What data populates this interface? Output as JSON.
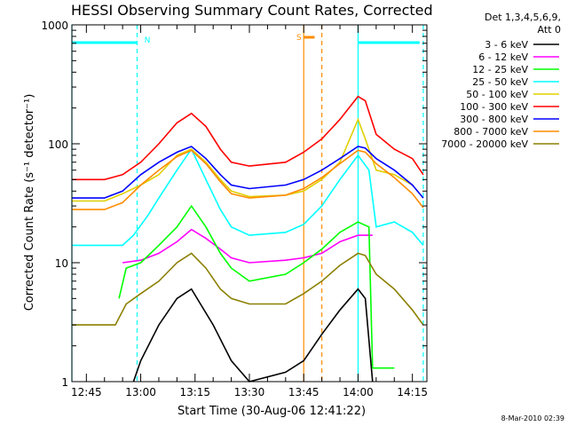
{
  "chart_data": {
    "type": "line",
    "title": "HESSI Observing Summary Count Rates, Corrected",
    "xlabel": "Start Time (30-Aug-06 12:41:22)",
    "ylabel": "Corrected Count Rate (s⁻¹ detector⁻¹)",
    "yscale": "log",
    "ylim": [
      1,
      1000
    ],
    "xlim": [
      "12:41",
      "14:19"
    ],
    "x_ticks": [
      "12:45",
      "13:00",
      "13:15",
      "13:30",
      "13:45",
      "14:00",
      "14:15"
    ],
    "y_ticks": [
      "1",
      "10",
      "100",
      "1000"
    ],
    "legend_header": [
      "Det 1,3,4,5,6,9,",
      "Att 0"
    ],
    "legend_position": "right",
    "timestamp": "8-Mar-2010 02:39",
    "markers": [
      {
        "label": "N",
        "color": "#00ffff"
      },
      {
        "label": "S",
        "color": "#ff8c00"
      }
    ],
    "series": [
      {
        "name": "3 - 6 keV",
        "color": "#000000",
        "x": [
          "12:58",
          "13:00",
          "13:05",
          "13:10",
          "13:14",
          "13:20",
          "13:25",
          "13:30",
          "13:40",
          "13:45",
          "13:50",
          "13:55",
          "14:00",
          "14:02",
          "14:04"
        ],
        "y": [
          1,
          1.5,
          3,
          5,
          6,
          3,
          1.5,
          1,
          1.2,
          1.5,
          2.5,
          4,
          6,
          5,
          1
        ]
      },
      {
        "name": "6 - 12 keV",
        "color": "#ff00ff",
        "x": [
          "12:55",
          "13:00",
          "13:05",
          "13:10",
          "13:14",
          "13:18",
          "13:22",
          "13:25",
          "13:30",
          "13:40",
          "13:45",
          "13:50",
          "13:55",
          "14:00",
          "14:04"
        ],
        "y": [
          10,
          10.5,
          12,
          15,
          19,
          16,
          13,
          11,
          10,
          10.5,
          11,
          12,
          15,
          17,
          17
        ]
      },
      {
        "name": "12 - 25 keV",
        "color": "#00ff00",
        "x": [
          "12:54",
          "12:56",
          "13:00",
          "13:05",
          "13:10",
          "13:14",
          "13:18",
          "13:22",
          "13:25",
          "13:30",
          "13:40",
          "13:45",
          "13:50",
          "13:55",
          "14:00",
          "14:03",
          "14:04",
          "14:10"
        ],
        "y": [
          5,
          9,
          10,
          14,
          20,
          30,
          20,
          12,
          9,
          7,
          8,
          10,
          13,
          18,
          22,
          20,
          1.3,
          1.3
        ]
      },
      {
        "name": "25 - 50 keV",
        "color": "#00ffff",
        "x": [
          "12:41",
          "12:55",
          "12:58",
          "13:02",
          "13:05",
          "13:10",
          "13:14",
          "13:18",
          "13:22",
          "13:25",
          "13:30",
          "13:40",
          "13:45",
          "13:50",
          "13:55",
          "14:00",
          "14:03",
          "14:05",
          "14:10",
          "14:15",
          "14:18"
        ],
        "y": [
          14,
          14,
          17,
          25,
          35,
          60,
          90,
          50,
          28,
          20,
          17,
          18,
          21,
          30,
          50,
          80,
          60,
          20,
          22,
          18,
          14
        ]
      },
      {
        "name": "50 - 100 keV",
        "color": "#e0d000",
        "x": [
          "12:41",
          "12:50",
          "12:55",
          "13:00",
          "13:05",
          "13:10",
          "13:14",
          "13:18",
          "13:22",
          "13:25",
          "13:30",
          "13:40",
          "13:45",
          "13:50",
          "13:55",
          "14:00",
          "14:02",
          "14:05",
          "14:10",
          "14:15",
          "14:18"
        ],
        "y": [
          33,
          33,
          38,
          45,
          55,
          80,
          90,
          70,
          50,
          40,
          36,
          37,
          40,
          50,
          70,
          160,
          110,
          60,
          55,
          45,
          35
        ]
      },
      {
        "name": "100 - 300 keV",
        "color": "#ff0000",
        "x": [
          "12:41",
          "12:50",
          "12:55",
          "13:00",
          "13:05",
          "13:10",
          "13:14",
          "13:18",
          "13:22",
          "13:25",
          "13:30",
          "13:40",
          "13:45",
          "13:50",
          "13:55",
          "14:00",
          "14:02",
          "14:05",
          "14:10",
          "14:15",
          "14:18"
        ],
        "y": [
          50,
          50,
          55,
          70,
          100,
          150,
          180,
          140,
          90,
          70,
          65,
          70,
          85,
          110,
          160,
          250,
          230,
          120,
          90,
          75,
          55
        ]
      },
      {
        "name": "300 - 800 keV",
        "color": "#0000ff",
        "x": [
          "12:41",
          "12:50",
          "12:55",
          "13:00",
          "13:05",
          "13:10",
          "13:14",
          "13:18",
          "13:22",
          "13:25",
          "13:30",
          "13:40",
          "13:45",
          "13:50",
          "13:55",
          "14:00",
          "14:02",
          "14:05",
          "14:10",
          "14:15",
          "14:18"
        ],
        "y": [
          35,
          35,
          40,
          55,
          70,
          85,
          95,
          75,
          55,
          45,
          42,
          45,
          50,
          60,
          75,
          95,
          92,
          75,
          60,
          45,
          35
        ]
      },
      {
        "name": "800 - 7000 keV",
        "color": "#ff8c00",
        "x": [
          "12:41",
          "12:50",
          "12:55",
          "13:00",
          "13:05",
          "13:10",
          "13:14",
          "13:18",
          "13:22",
          "13:25",
          "13:30",
          "13:40",
          "13:45",
          "13:50",
          "13:55",
          "14:00",
          "14:02",
          "14:05",
          "14:10",
          "14:15",
          "14:18"
        ],
        "y": [
          28,
          28,
          32,
          45,
          60,
          78,
          88,
          68,
          48,
          38,
          35,
          37,
          42,
          52,
          68,
          88,
          85,
          68,
          52,
          38,
          29
        ]
      },
      {
        "name": "7000 - 20000 keV",
        "color": "#8b8000",
        "x": [
          "12:41",
          "12:53",
          "12:56",
          "13:00",
          "13:05",
          "13:10",
          "13:14",
          "13:18",
          "13:22",
          "13:25",
          "13:30",
          "13:40",
          "13:45",
          "13:50",
          "13:55",
          "14:00",
          "14:02",
          "14:05",
          "14:10",
          "14:15",
          "14:18"
        ],
        "y": [
          3,
          3,
          4.5,
          5.5,
          7,
          10,
          12,
          9,
          6,
          5,
          4.5,
          4.5,
          5.5,
          7,
          9.5,
          12,
          11.5,
          8,
          6,
          4,
          3
        ]
      }
    ]
  }
}
